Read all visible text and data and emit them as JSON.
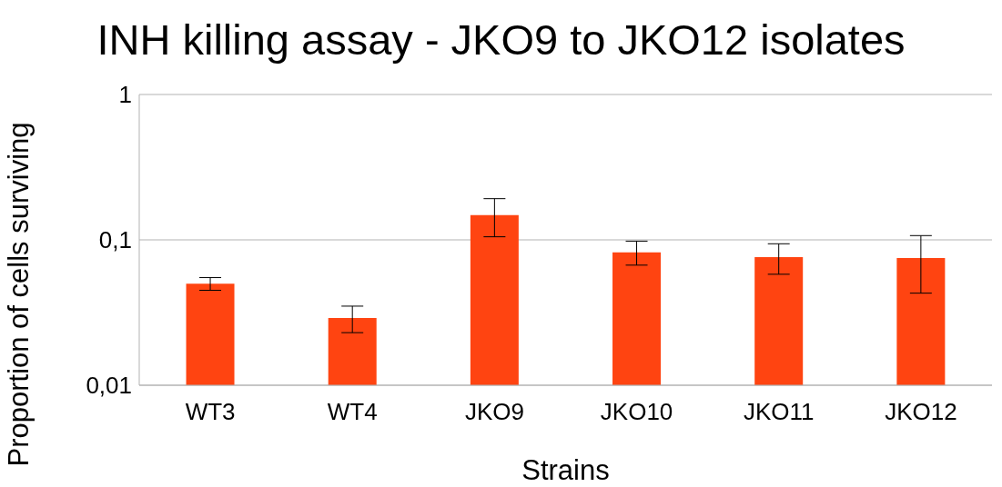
{
  "chart_data": {
    "type": "bar",
    "title": "INH killing assay - JKO9 to JKO12 isolates",
    "xlabel": "Strains",
    "ylabel": "Proportion of cells surviving",
    "categories": [
      "WT3",
      "WT4",
      "JKO9",
      "JKO10",
      "JKO11",
      "JKO12"
    ],
    "values": [
      0.05,
      0.029,
      0.148,
      0.082,
      0.076,
      0.075
    ],
    "errors": [
      [
        0.045,
        0.055
      ],
      [
        0.023,
        0.035
      ],
      [
        0.105,
        0.192
      ],
      [
        0.067,
        0.098
      ],
      [
        0.058,
        0.094
      ],
      [
        0.043,
        0.107
      ]
    ],
    "color": "#ff4411",
    "log": true,
    "ylim": [
      0.01,
      1
    ],
    "yticks": [
      {
        "value": 0.01,
        "label": "0,01"
      },
      {
        "value": 0.1,
        "label": "0,1"
      },
      {
        "value": 1,
        "label": "1"
      }
    ],
    "grid": "y"
  }
}
